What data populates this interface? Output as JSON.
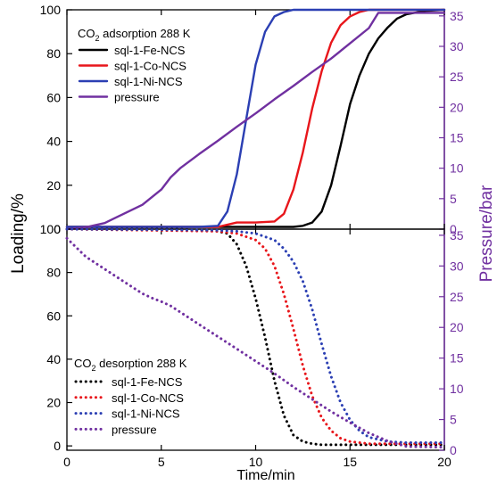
{
  "chart_data": [
    {
      "type": "line",
      "panel": "top",
      "annotation": "adsorption 288 K",
      "annotation_prefix": "CO",
      "annotation_sub": "2",
      "xlim": [
        0,
        20
      ],
      "ylim": [
        0,
        100
      ],
      "y2lim": [
        0,
        36
      ],
      "line_style": "solid",
      "legend_placement": "top-left",
      "series": [
        {
          "name": "sql-1-Fe-NCS",
          "color": "#000000",
          "axis": "left",
          "x": [
            0,
            8,
            10,
            11,
            12,
            12.5,
            13,
            13.5,
            14,
            14.5,
            15,
            15.5,
            16,
            16.5,
            17,
            17.5,
            18,
            19,
            20
          ],
          "y": [
            1,
            1,
            1,
            1,
            1,
            1.5,
            3,
            8,
            20,
            38,
            57,
            70,
            80,
            87,
            92,
            96,
            98,
            99.5,
            100
          ]
        },
        {
          "name": "sql-1-Co-NCS",
          "color": "#e8161b",
          "axis": "left",
          "x": [
            0,
            8,
            8.5,
            9,
            10,
            11,
            11.5,
            12,
            12.5,
            13,
            13.5,
            14,
            14.5,
            15,
            15.5,
            16,
            17,
            20
          ],
          "y": [
            1,
            1,
            2,
            3,
            3,
            3.5,
            7,
            18,
            35,
            55,
            72,
            85,
            93,
            97,
            99,
            100,
            100,
            100
          ]
        },
        {
          "name": "sql-1-Ni-NCS",
          "color": "#2b3fb3",
          "axis": "left",
          "x": [
            0,
            7,
            8,
            8.5,
            9,
            9.5,
            10,
            10.5,
            11,
            11.5,
            12,
            13,
            20
          ],
          "y": [
            1,
            1,
            1.5,
            8,
            25,
            50,
            75,
            90,
            97,
            99,
            100,
            100,
            100
          ]
        },
        {
          "name": "pressure",
          "color": "#7030a0",
          "axis": "right",
          "x": [
            0,
            1,
            2,
            3,
            4,
            5,
            5.5,
            6,
            7,
            8,
            9,
            10,
            11,
            12,
            13,
            14,
            15,
            16,
            16.5,
            20
          ],
          "y": [
            0,
            0.3,
            1,
            2.5,
            4,
            6.5,
            8.5,
            10,
            12.3,
            14.5,
            16.8,
            19,
            21.3,
            23.5,
            25.8,
            28,
            30.5,
            33,
            35.5,
            35.5
          ]
        }
      ]
    },
    {
      "type": "line",
      "panel": "bottom",
      "annotation": "desorption 288 K",
      "annotation_prefix": "CO",
      "annotation_sub": "2",
      "xlim": [
        0,
        20
      ],
      "ylim": [
        -2,
        100
      ],
      "y2lim": [
        0,
        36
      ],
      "line_style": "dotted",
      "legend_placement": "bottom-left",
      "series": [
        {
          "name": "sql-1-Fe-NCS",
          "color": "#000000",
          "axis": "left",
          "x": [
            0,
            6,
            8,
            8.5,
            9,
            9.5,
            10,
            10.5,
            11,
            11.5,
            12,
            12.5,
            13,
            13.5,
            20
          ],
          "y": [
            100,
            100,
            99,
            98,
            93,
            83,
            68,
            50,
            30,
            14,
            5,
            2,
            1,
            0.5,
            0.5
          ]
        },
        {
          "name": "sql-1-Co-NCS",
          "color": "#e8161b",
          "axis": "left",
          "x": [
            0,
            8,
            9,
            10,
            10.5,
            11,
            11.5,
            12,
            12.5,
            13,
            13.5,
            14,
            14.5,
            15,
            16,
            20
          ],
          "y": [
            100,
            99,
            98,
            95,
            91,
            83,
            70,
            54,
            37,
            23,
            13,
            7,
            3.5,
            2,
            1,
            1
          ]
        },
        {
          "name": "sql-1-Ni-NCS",
          "color": "#2b3fb3",
          "axis": "left",
          "x": [
            0,
            8,
            9,
            10,
            11,
            11.5,
            12,
            12.5,
            13,
            13.5,
            14,
            14.5,
            15,
            15.5,
            16,
            17,
            18,
            20
          ],
          "y": [
            100,
            99.5,
            99,
            98,
            95,
            91,
            85,
            76,
            63,
            47,
            32,
            20,
            12,
            7,
            4,
            2,
            1.5,
            1.5
          ]
        },
        {
          "name": "pressure",
          "color": "#7030a0",
          "axis": "right",
          "x": [
            0,
            1,
            2,
            3,
            4,
            4.5,
            5,
            5.5,
            6,
            7,
            8,
            9,
            10,
            11,
            12,
            13,
            14,
            15,
            16,
            17,
            18,
            20
          ],
          "y": [
            34.5,
            31.5,
            29.5,
            27.5,
            25.5,
            24.8,
            24.2,
            23.5,
            22.5,
            20.5,
            18.5,
            16.5,
            14.5,
            12.5,
            10.3,
            8.3,
            6.3,
            4.5,
            2.8,
            1.5,
            0.6,
            0.5
          ]
        }
      ]
    }
  ],
  "axes": {
    "xlabel": "Time/min",
    "ylabel_left": "Loading/%",
    "ylabel_right": "Pressure/bar",
    "xticks": [
      0,
      5,
      10,
      15,
      20
    ],
    "yticks_left": [
      0,
      20,
      40,
      60,
      80,
      100
    ],
    "yticks_right": [
      0,
      5,
      10,
      15,
      20,
      25,
      30,
      35
    ],
    "right_axis_color": "#7030a0"
  }
}
